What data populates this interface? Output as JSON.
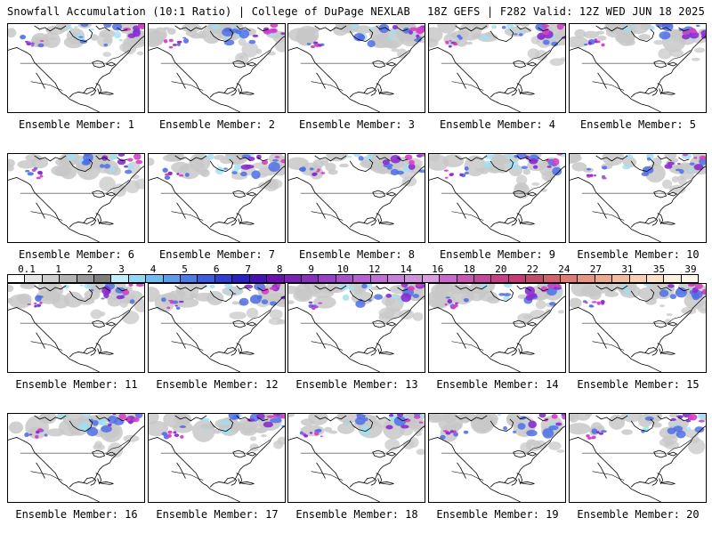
{
  "header": {
    "left": "Snowfall Accumulation (10:1 Ratio) | College of DuPage NEXLAB",
    "right": "18Z GEFS | F282 Valid: 12Z WED JUN 18 2025"
  },
  "members": [
    "Ensemble Member: 1",
    "Ensemble Member: 2",
    "Ensemble Member: 3",
    "Ensemble Member: 4",
    "Ensemble Member: 5",
    "Ensemble Member: 6",
    "Ensemble Member: 7",
    "Ensemble Member: 8",
    "Ensemble Member: 9",
    "Ensemble Member: 10",
    "Ensemble Member: 11",
    "Ensemble Member: 12",
    "Ensemble Member: 13",
    "Ensemble Member: 14",
    "Ensemble Member: 15",
    "Ensemble Member: 16",
    "Ensemble Member: 17",
    "Ensemble Member: 18",
    "Ensemble Member: 19",
    "Ensemble Member: 20"
  ],
  "color_scale": {
    "labels": [
      "0.1",
      "1",
      "2",
      "3",
      "4",
      "5",
      "6",
      "7",
      "8",
      "9",
      "10",
      "12",
      "14",
      "16",
      "18",
      "20",
      "22",
      "24",
      "27",
      "31",
      "35",
      "39"
    ],
    "colors": [
      "#ffffff",
      "#e6e6e6",
      "#cfcfcf",
      "#b3b3b3",
      "#989898",
      "#7d7d7d",
      "#bfeffb",
      "#8fd9f7",
      "#6ebcf2",
      "#5a9cee",
      "#4a7be8",
      "#3b5de0",
      "#2f3fd6",
      "#2a20c8",
      "#4a10b8",
      "#6a10b0",
      "#7a20b8",
      "#8a30c0",
      "#9a40c8",
      "#a850cc",
      "#b860d0",
      "#c070d4",
      "#c880d8",
      "#d090dc",
      "#d89ce0",
      "#cc66cc",
      "#c855b8",
      "#c8459e",
      "#c84088",
      "#c83a78",
      "#c84a6a",
      "#d4606a",
      "#e07a74",
      "#e8947e",
      "#f0a88c",
      "#f4bc9c",
      "#f8ceb0",
      "#fbdfc6",
      "#fdeedd",
      "#fff6ec"
    ]
  },
  "map_colors": {
    "snow_gray": "#c8c8c8",
    "snow_blue": "#4f6fe8",
    "snow_purple": "#8a2bd0",
    "snow_magenta": "#d53fc6",
    "cyan": "#9ee0f5",
    "outline": "#000000"
  }
}
